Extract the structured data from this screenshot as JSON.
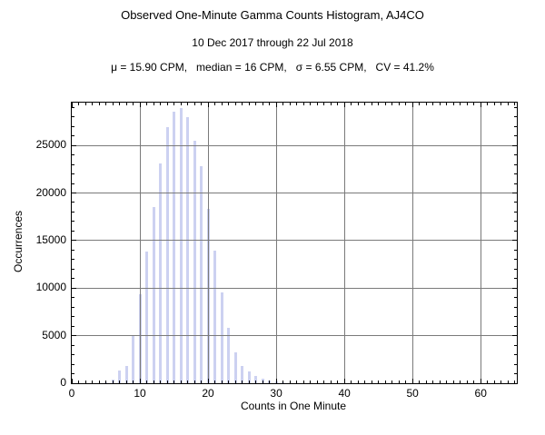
{
  "title": "Observed One-Minute Gamma Counts Histogram, AJ4CO",
  "subtitle": "10 Dec 2017 through 22 Jul 2018",
  "stats_line": "μ = 15.90 CPM,   median = 16 CPM,   σ = 6.55 CPM,   CV = 41.2%",
  "chart_data": {
    "type": "bar",
    "title": "Observed One-Minute Gamma Counts Histogram, AJ4CO",
    "subtitle": "10 Dec 2017 through 22 Jul 2018",
    "annotation": "μ = 15.90 CPM,   median = 16 CPM,   σ = 6.55 CPM,   CV = 41.2%",
    "xlabel": "Counts in One Minute",
    "ylabel": "Occurrences",
    "xlim": [
      0,
      65.3
    ],
    "ylim": [
      0,
      29500
    ],
    "x_ticks": [
      0,
      10,
      20,
      30,
      40,
      50,
      60
    ],
    "y_ticks": [
      0,
      5000,
      10000,
      15000,
      20000,
      25000
    ],
    "x_minor_step": 1,
    "y_minor_step": 1000,
    "grid": true,
    "grid_color": "#7a7a7a",
    "frame_color": "#000000",
    "bar_color": "#aab3e8",
    "bar_opacity": 0.6,
    "legend": "none",
    "x": [
      5,
      6,
      7,
      8,
      9,
      10,
      11,
      12,
      13,
      14,
      15,
      16,
      17,
      18,
      19,
      20,
      21,
      22,
      23,
      24,
      25,
      26,
      27,
      28,
      29,
      30,
      31
    ],
    "values": [
      100,
      350,
      1300,
      1800,
      5000,
      9400,
      13800,
      18500,
      23100,
      26900,
      28500,
      28900,
      28000,
      25500,
      22800,
      18300,
      13900,
      9500,
      5800,
      3200,
      1800,
      1200,
      800,
      500,
      300,
      150,
      80
    ]
  }
}
